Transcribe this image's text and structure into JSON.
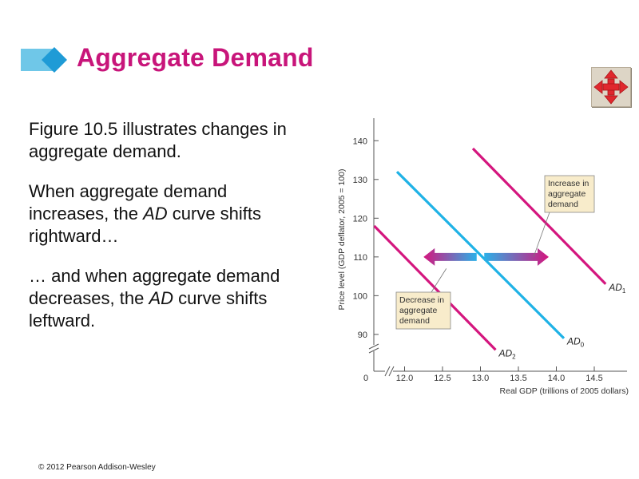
{
  "slide": {
    "title": "Aggregate Demand",
    "copyright": "© 2012 Pearson Addison-Wesley",
    "paragraphs": [
      {
        "runs": [
          {
            "text": "Figure 10.5 illustrates changes in aggregate demand.",
            "italic": false
          }
        ]
      },
      {
        "runs": [
          {
            "text": "When aggregate  demand increases, the ",
            "italic": false
          },
          {
            "text": "AD",
            "italic": true
          },
          {
            "text": " curve shifts rightward…",
            "italic": false
          }
        ]
      },
      {
        "runs": [
          {
            "text": "… and when aggregate demand decreases, the ",
            "italic": false
          },
          {
            "text": "AD",
            "italic": true
          },
          {
            "text": " curve shifts leftward.",
            "italic": false
          }
        ]
      }
    ],
    "nav_icon": "four-way-move-arrows-icon",
    "colors": {
      "title": "#c8157a",
      "accent_bar": "#6fc7e8",
      "diamond": "#1f9bd6"
    }
  },
  "chart_data": {
    "type": "line",
    "xlabel": "Real GDP (trillions of 2005 dollars)",
    "ylabel": "Price level (GDP deflator, 2005 = 100)",
    "xlim": [
      11.7,
      14.9
    ],
    "ylim": [
      84,
      145
    ],
    "x_ticks": [
      12.0,
      12.5,
      13.0,
      13.5,
      14.0,
      14.5
    ],
    "x_tick_labels": [
      "12.0",
      "12.5",
      "13.0",
      "13.5",
      "14.0",
      "14.5"
    ],
    "y_ticks": [
      90,
      100,
      110,
      120,
      130,
      140
    ],
    "y_tick_labels": [
      "90",
      "100",
      "110",
      "120",
      "130",
      "140"
    ],
    "origin_label": "0",
    "axis_break": true,
    "grid": false,
    "series": [
      {
        "name": "AD0",
        "label_main": "AD",
        "label_sub": "0",
        "color": "#1fb2e6",
        "x": [
          11.9,
          14.1
        ],
        "y": [
          132,
          89
        ]
      },
      {
        "name": "AD1",
        "label_main": "AD",
        "label_sub": "1",
        "color": "#d4167e",
        "x": [
          12.9,
          14.65
        ],
        "y": [
          138,
          103
        ]
      },
      {
        "name": "AD2",
        "label_main": "AD",
        "label_sub": "2",
        "color": "#d4167e",
        "x": [
          11.6,
          13.2
        ],
        "y": [
          118,
          86
        ]
      }
    ],
    "shift_arrows": [
      {
        "from": 12.95,
        "to": 12.25,
        "y": 110
      },
      {
        "from": 13.05,
        "to": 13.9,
        "y": 110
      }
    ],
    "annotations": [
      {
        "lines": [
          "Increase in",
          "aggregate",
          "demand"
        ],
        "anchor": [
          13.7,
          110
        ]
      },
      {
        "lines": [
          "Decrease in",
          "aggregate",
          "demand"
        ],
        "anchor": [
          12.55,
          107
        ]
      }
    ]
  }
}
